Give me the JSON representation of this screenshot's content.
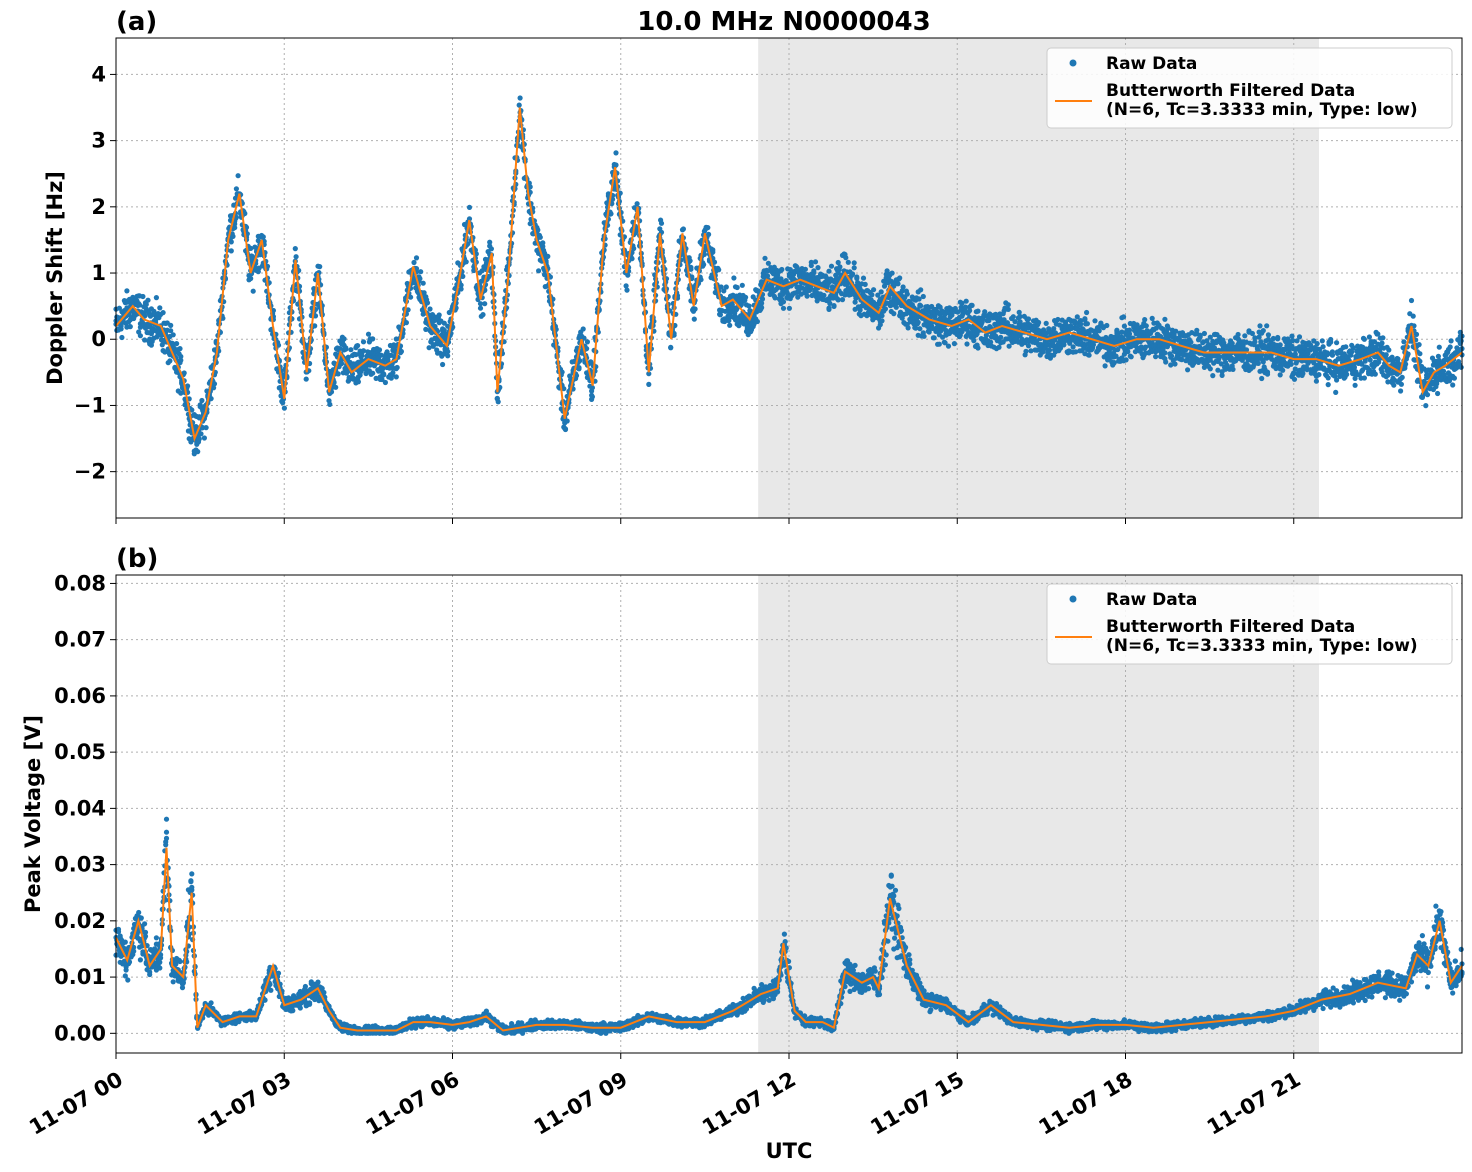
{
  "figure": {
    "title": "10.0 MHz N0000043",
    "xlabel": "UTC",
    "colors": {
      "raw": "#1f77b4",
      "filtered": "#ff7f0e",
      "shade": "#e8e8e8",
      "grid": "#b0b0b0"
    }
  },
  "chart_data": [
    {
      "panel": "(a)",
      "type": "scatter",
      "ylabel": "Doppler Shift [Hz]",
      "xlim_hours": [
        0,
        24
      ],
      "ylim": [
        -2.7,
        4.55
      ],
      "yticks": [
        -2,
        -1,
        0,
        1,
        2,
        3,
        4
      ],
      "ytick_labels": [
        "−2",
        "−1",
        "0",
        "1",
        "2",
        "3",
        "4"
      ],
      "xticks_hours": [
        0,
        3,
        6,
        9,
        12,
        15,
        18,
        21
      ],
      "xtick_labels": [
        "11-07 00",
        "11-07 03",
        "11-07 06",
        "11-07 09",
        "11-07 12",
        "11-07 15",
        "11-07 18",
        "11-07 21"
      ],
      "grid": true,
      "legend_position": "top-right",
      "shaded_interval_hours": [
        11.45,
        21.45
      ],
      "series": [
        {
          "name": "Raw Data",
          "style": "dots"
        },
        {
          "name": "Butterworth Filtered Data\n(N=6, Tc=3.3333 min, Type: low)",
          "style": "line",
          "x_hours": [
            0,
            0.3,
            0.5,
            0.8,
            1.0,
            1.2,
            1.4,
            1.6,
            1.8,
            2.0,
            2.2,
            2.4,
            2.6,
            2.8,
            3.0,
            3.2,
            3.4,
            3.6,
            3.8,
            4.0,
            4.2,
            4.5,
            4.8,
            5.0,
            5.3,
            5.6,
            5.9,
            6.1,
            6.3,
            6.5,
            6.7,
            6.8,
            7.0,
            7.2,
            7.35,
            7.5,
            7.7,
            8.0,
            8.3,
            8.5,
            8.7,
            8.9,
            9.1,
            9.3,
            9.5,
            9.7,
            9.9,
            10.1,
            10.3,
            10.5,
            10.8,
            11.0,
            11.3,
            11.6,
            11.9,
            12.2,
            12.5,
            12.8,
            13.0,
            13.3,
            13.6,
            13.8,
            14.1,
            14.5,
            14.9,
            15.2,
            15.5,
            15.8,
            16.2,
            16.6,
            17.0,
            17.4,
            17.8,
            18.2,
            18.6,
            19.0,
            19.4,
            19.8,
            20.2,
            20.6,
            21.0,
            21.4,
            21.8,
            22.2,
            22.5,
            22.7,
            22.9,
            23.1,
            23.3,
            23.5,
            23.7,
            24.0
          ],
          "values": [
            0.2,
            0.5,
            0.3,
            0.2,
            -0.2,
            -0.6,
            -1.5,
            -1.1,
            -0.2,
            1.5,
            2.2,
            1.0,
            1.5,
            0.2,
            -0.9,
            1.2,
            -0.5,
            1.0,
            -0.8,
            -0.2,
            -0.5,
            -0.3,
            -0.4,
            -0.3,
            1.1,
            0.2,
            -0.1,
            0.8,
            1.8,
            0.6,
            1.3,
            -0.8,
            1.0,
            3.5,
            2.2,
            1.5,
            1.0,
            -1.2,
            0.0,
            -0.7,
            1.5,
            2.6,
            1.0,
            2.0,
            -0.5,
            1.6,
            0.0,
            1.6,
            0.5,
            1.6,
            0.5,
            0.6,
            0.3,
            0.9,
            0.8,
            0.9,
            0.8,
            0.7,
            1.0,
            0.6,
            0.4,
            0.8,
            0.5,
            0.3,
            0.2,
            0.3,
            0.1,
            0.2,
            0.1,
            0.0,
            0.1,
            0.0,
            -0.1,
            0.0,
            0.0,
            -0.1,
            -0.2,
            -0.2,
            -0.2,
            -0.2,
            -0.3,
            -0.3,
            -0.4,
            -0.3,
            -0.2,
            -0.4,
            -0.5,
            0.2,
            -0.8,
            -0.5,
            -0.4,
            -0.2
          ]
        }
      ]
    },
    {
      "panel": "(b)",
      "type": "scatter",
      "ylabel": "Peak Voltage [V]",
      "xlim_hours": [
        0,
        24
      ],
      "ylim": [
        -0.0035,
        0.0815
      ],
      "yticks": [
        0.0,
        0.01,
        0.02,
        0.03,
        0.04,
        0.05,
        0.06,
        0.07,
        0.08
      ],
      "ytick_labels": [
        "0.00",
        "0.01",
        "0.02",
        "0.03",
        "0.04",
        "0.05",
        "0.06",
        "0.07",
        "0.08"
      ],
      "xticks_hours": [
        0,
        3,
        6,
        9,
        12,
        15,
        18,
        21
      ],
      "xtick_labels": [
        "11-07 00",
        "11-07 03",
        "11-07 06",
        "11-07 09",
        "11-07 12",
        "11-07 15",
        "11-07 18",
        "11-07 21"
      ],
      "grid": true,
      "legend_position": "top-right",
      "shaded_interval_hours": [
        11.45,
        21.45
      ],
      "series": [
        {
          "name": "Raw Data",
          "style": "dots"
        },
        {
          "name": "Butterworth Filtered Data\n(N=6, Tc=3.3333 min, Type: low)",
          "style": "line",
          "x_hours": [
            0,
            0.2,
            0.4,
            0.6,
            0.8,
            0.9,
            1.0,
            1.2,
            1.35,
            1.45,
            1.6,
            1.9,
            2.2,
            2.5,
            2.8,
            3.0,
            3.3,
            3.6,
            3.8,
            4.0,
            4.3,
            4.6,
            5.0,
            5.3,
            5.6,
            6.0,
            6.3,
            6.6,
            6.9,
            7.2,
            7.5,
            8.0,
            8.5,
            9.0,
            9.5,
            10.0,
            10.5,
            11.0,
            11.5,
            11.8,
            11.9,
            12.1,
            12.3,
            12.6,
            12.8,
            13.0,
            13.3,
            13.5,
            13.6,
            13.8,
            14.1,
            14.4,
            14.8,
            15.2,
            15.6,
            16.0,
            16.5,
            17.0,
            17.5,
            18.0,
            18.5,
            19.0,
            19.5,
            20.0,
            20.5,
            21.0,
            21.5,
            22.0,
            22.5,
            23.0,
            23.2,
            23.4,
            23.6,
            23.8,
            24.0
          ],
          "values": [
            0.017,
            0.013,
            0.02,
            0.012,
            0.015,
            0.033,
            0.012,
            0.01,
            0.025,
            0.001,
            0.005,
            0.002,
            0.003,
            0.003,
            0.012,
            0.005,
            0.006,
            0.008,
            0.004,
            0.001,
            0.0005,
            0.0005,
            0.0005,
            0.002,
            0.002,
            0.0015,
            0.002,
            0.003,
            0.0005,
            0.001,
            0.0015,
            0.0015,
            0.001,
            0.001,
            0.003,
            0.002,
            0.002,
            0.004,
            0.007,
            0.008,
            0.016,
            0.004,
            0.002,
            0.002,
            0.001,
            0.011,
            0.009,
            0.01,
            0.008,
            0.024,
            0.012,
            0.006,
            0.005,
            0.002,
            0.005,
            0.002,
            0.0015,
            0.001,
            0.0015,
            0.0015,
            0.001,
            0.0015,
            0.002,
            0.0025,
            0.003,
            0.004,
            0.006,
            0.007,
            0.009,
            0.008,
            0.014,
            0.012,
            0.02,
            0.009,
            0.012
          ]
        }
      ]
    }
  ]
}
